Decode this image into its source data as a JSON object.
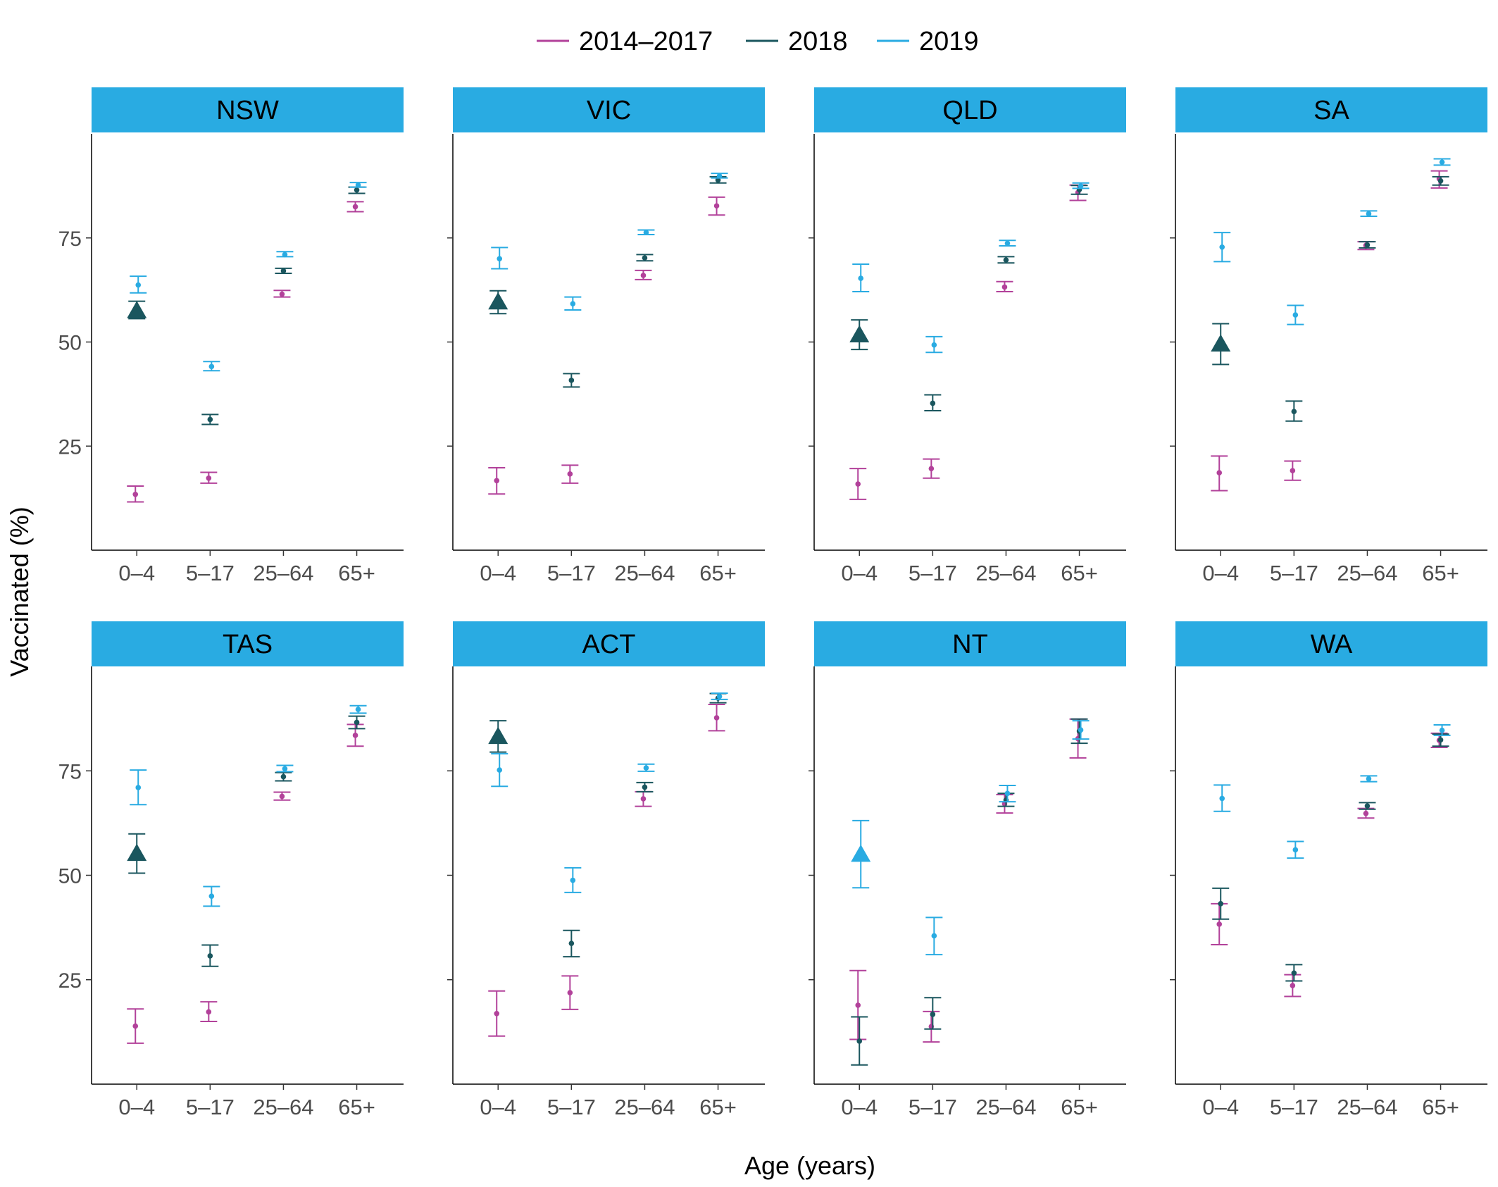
{
  "chart_data": {
    "type": "scatter",
    "xlabel": "Age (years)",
    "ylabel": "Vaccinated (%)",
    "ylim": [
      0,
      100
    ],
    "yticks": [
      25,
      50,
      75
    ],
    "categories": [
      "0–4",
      "5–17",
      "25–64",
      "65+"
    ],
    "legend": {
      "placement": "top",
      "entries": [
        {
          "name": "2014–2017",
          "color": "#b2419a"
        },
        {
          "name": "2018",
          "color": "#1a565e"
        },
        {
          "name": "2019",
          "color": "#29abe2"
        }
      ]
    },
    "strip_color": "#29abe2",
    "marker_note": "triangle marks highlighted 0–4 estimate",
    "panels": [
      {
        "name": "NSW",
        "series": [
          {
            "name": "2014–2017",
            "points": [
              {
                "y": 13.4,
                "lo": 11.6,
                "hi": 15.4
              },
              {
                "y": 17.3,
                "lo": 16.1,
                "hi": 18.7
              },
              {
                "y": 61.5,
                "lo": 60.8,
                "hi": 62.4
              },
              {
                "y": 82.5,
                "lo": 81.3,
                "hi": 83.7
              }
            ]
          },
          {
            "name": "2018",
            "points": [
              {
                "y": 57.5,
                "lo": 55.6,
                "hi": 59.8,
                "marker": "triangle"
              },
              {
                "y": 31.4,
                "lo": 30.2,
                "hi": 32.6
              },
              {
                "y": 67.1,
                "lo": 66.5,
                "hi": 67.7
              },
              {
                "y": 86.5,
                "lo": 85.7,
                "hi": 87.2
              }
            ]
          },
          {
            "name": "2019",
            "points": [
              {
                "y": 63.7,
                "lo": 61.8,
                "hi": 65.8
              },
              {
                "y": 44.1,
                "lo": 43.1,
                "hi": 45.3
              },
              {
                "y": 71.0,
                "lo": 70.5,
                "hi": 71.7
              },
              {
                "y": 87.7,
                "lo": 87.2,
                "hi": 88.3
              }
            ]
          }
        ]
      },
      {
        "name": "VIC",
        "series": [
          {
            "name": "2014–2017",
            "points": [
              {
                "y": 16.7,
                "lo": 13.5,
                "hi": 19.8
              },
              {
                "y": 18.3,
                "lo": 16.1,
                "hi": 20.4
              },
              {
                "y": 66.0,
                "lo": 65.0,
                "hi": 67.2
              },
              {
                "y": 82.7,
                "lo": 80.5,
                "hi": 84.8
              }
            ]
          },
          {
            "name": "2018",
            "points": [
              {
                "y": 59.6,
                "lo": 56.8,
                "hi": 62.3,
                "marker": "triangle"
              },
              {
                "y": 40.8,
                "lo": 39.2,
                "hi": 42.4
              },
              {
                "y": 70.2,
                "lo": 69.5,
                "hi": 71.0
              },
              {
                "y": 88.9,
                "lo": 88.2,
                "hi": 89.7
              }
            ]
          },
          {
            "name": "2019",
            "points": [
              {
                "y": 70.0,
                "lo": 67.6,
                "hi": 72.7
              },
              {
                "y": 59.2,
                "lo": 57.7,
                "hi": 60.8
              },
              {
                "y": 76.3,
                "lo": 75.8,
                "hi": 76.9
              },
              {
                "y": 89.9,
                "lo": 89.4,
                "hi": 90.5
              }
            ]
          }
        ]
      },
      {
        "name": "QLD",
        "series": [
          {
            "name": "2014–2017",
            "points": [
              {
                "y": 15.9,
                "lo": 12.2,
                "hi": 19.6
              },
              {
                "y": 19.6,
                "lo": 17.3,
                "hi": 21.9
              },
              {
                "y": 63.2,
                "lo": 62.1,
                "hi": 64.5
              },
              {
                "y": 85.9,
                "lo": 84.0,
                "hi": 87.7
              }
            ]
          },
          {
            "name": "2018",
            "points": [
              {
                "y": 51.7,
                "lo": 48.2,
                "hi": 55.3,
                "marker": "triangle"
              },
              {
                "y": 35.3,
                "lo": 33.5,
                "hi": 37.3
              },
              {
                "y": 69.7,
                "lo": 69.0,
                "hi": 70.5
              },
              {
                "y": 86.6,
                "lo": 85.5,
                "hi": 87.6
              }
            ]
          },
          {
            "name": "2019",
            "points": [
              {
                "y": 65.3,
                "lo": 62.1,
                "hi": 68.7
              },
              {
                "y": 49.3,
                "lo": 47.5,
                "hi": 51.3
              },
              {
                "y": 73.7,
                "lo": 73.1,
                "hi": 74.4
              },
              {
                "y": 87.5,
                "lo": 86.9,
                "hi": 88.2
              }
            ]
          }
        ]
      },
      {
        "name": "SA",
        "series": [
          {
            "name": "2014–2017",
            "points": [
              {
                "y": 18.6,
                "lo": 14.3,
                "hi": 22.6
              },
              {
                "y": 19.1,
                "lo": 16.8,
                "hi": 21.4
              },
              {
                "y": 73.2,
                "lo": 72.2,
                "hi": 74.1
              },
              {
                "y": 89.2,
                "lo": 87.0,
                "hi": 91.1
              }
            ]
          },
          {
            "name": "2018",
            "points": [
              {
                "y": 49.5,
                "lo": 44.6,
                "hi": 54.4,
                "marker": "triangle"
              },
              {
                "y": 33.3,
                "lo": 31.0,
                "hi": 35.8
              },
              {
                "y": 73.3,
                "lo": 72.6,
                "hi": 74.1
              },
              {
                "y": 88.7,
                "lo": 87.7,
                "hi": 89.7
              }
            ]
          },
          {
            "name": "2019",
            "points": [
              {
                "y": 72.8,
                "lo": 69.3,
                "hi": 76.3
              },
              {
                "y": 56.5,
                "lo": 54.2,
                "hi": 58.8
              },
              {
                "y": 80.8,
                "lo": 80.2,
                "hi": 81.5
              },
              {
                "y": 93.2,
                "lo": 92.5,
                "hi": 94.0
              }
            ]
          }
        ]
      },
      {
        "name": "TAS",
        "series": [
          {
            "name": "2014–2017",
            "points": [
              {
                "y": 13.9,
                "lo": 9.8,
                "hi": 18.0
              },
              {
                "y": 17.3,
                "lo": 15.0,
                "hi": 19.7
              },
              {
                "y": 68.9,
                "lo": 68.0,
                "hi": 69.9
              },
              {
                "y": 83.5,
                "lo": 80.9,
                "hi": 86.1
              }
            ]
          },
          {
            "name": "2018",
            "points": [
              {
                "y": 55.2,
                "lo": 50.5,
                "hi": 59.9,
                "marker": "triangle"
              },
              {
                "y": 30.7,
                "lo": 28.2,
                "hi": 33.3
              },
              {
                "y": 73.6,
                "lo": 72.6,
                "hi": 74.6
              },
              {
                "y": 86.6,
                "lo": 85.1,
                "hi": 88.1
              }
            ]
          },
          {
            "name": "2019",
            "points": [
              {
                "y": 71.0,
                "lo": 66.9,
                "hi": 75.2
              },
              {
                "y": 45.0,
                "lo": 42.6,
                "hi": 47.3
              },
              {
                "y": 75.5,
                "lo": 74.8,
                "hi": 76.3
              },
              {
                "y": 89.7,
                "lo": 88.8,
                "hi": 90.6
              }
            ]
          }
        ]
      },
      {
        "name": "ACT",
        "series": [
          {
            "name": "2014–2017",
            "points": [
              {
                "y": 16.9,
                "lo": 11.5,
                "hi": 22.3
              },
              {
                "y": 21.9,
                "lo": 17.9,
                "hi": 25.9
              },
              {
                "y": 68.3,
                "lo": 66.5,
                "hi": 70.0
              },
              {
                "y": 87.7,
                "lo": 84.6,
                "hi": 90.9
              }
            ]
          },
          {
            "name": "2018",
            "points": [
              {
                "y": 83.2,
                "lo": 79.5,
                "hi": 87.0,
                "marker": "triangle"
              },
              {
                "y": 33.7,
                "lo": 30.5,
                "hi": 36.8
              },
              {
                "y": 71.1,
                "lo": 70.0,
                "hi": 72.2
              },
              {
                "y": 92.4,
                "lo": 91.3,
                "hi": 93.5
              }
            ]
          },
          {
            "name": "2019",
            "points": [
              {
                "y": 75.2,
                "lo": 71.3,
                "hi": 79.1
              },
              {
                "y": 48.8,
                "lo": 45.9,
                "hi": 51.8
              },
              {
                "y": 75.7,
                "lo": 74.9,
                "hi": 76.6
              },
              {
                "y": 92.8,
                "lo": 92.1,
                "hi": 93.6
              }
            ]
          }
        ]
      },
      {
        "name": "NT",
        "series": [
          {
            "name": "2014–2017",
            "points": [
              {
                "y": 18.9,
                "lo": 10.7,
                "hi": 27.2
              },
              {
                "y": 13.8,
                "lo": 10.1,
                "hi": 17.4
              },
              {
                "y": 67.1,
                "lo": 64.9,
                "hi": 69.3
              },
              {
                "y": 82.7,
                "lo": 78.1,
                "hi": 87.4
              }
            ]
          },
          {
            "name": "2018",
            "points": [
              {
                "y": 10.3,
                "lo": 4.6,
                "hi": 16.1
              },
              {
                "y": 16.7,
                "lo": 13.2,
                "hi": 20.7
              },
              {
                "y": 68.0,
                "lo": 66.5,
                "hi": 69.6
              },
              {
                "y": 84.5,
                "lo": 81.6,
                "hi": 87.4
              }
            ]
          },
          {
            "name": "2019",
            "points": [
              {
                "y": 55.0,
                "lo": 47.0,
                "hi": 63.1,
                "marker": "triangle"
              },
              {
                "y": 35.5,
                "lo": 31.0,
                "hi": 39.9
              },
              {
                "y": 69.6,
                "lo": 67.6,
                "hi": 71.5
              },
              {
                "y": 84.8,
                "lo": 82.6,
                "hi": 87.0
              }
            ]
          }
        ]
      },
      {
        "name": "WA",
        "series": [
          {
            "name": "2014–2017",
            "points": [
              {
                "y": 38.3,
                "lo": 33.4,
                "hi": 43.2
              },
              {
                "y": 23.6,
                "lo": 21.0,
                "hi": 26.2
              },
              {
                "y": 64.8,
                "lo": 63.7,
                "hi": 66.0
              },
              {
                "y": 82.3,
                "lo": 80.6,
                "hi": 84.0
              }
            ]
          },
          {
            "name": "2018",
            "points": [
              {
                "y": 43.2,
                "lo": 39.5,
                "hi": 46.9
              },
              {
                "y": 26.6,
                "lo": 24.7,
                "hi": 28.6
              },
              {
                "y": 66.6,
                "lo": 65.8,
                "hi": 67.4
              },
              {
                "y": 82.4,
                "lo": 80.9,
                "hi": 83.8
              }
            ]
          },
          {
            "name": "2019",
            "points": [
              {
                "y": 68.4,
                "lo": 65.3,
                "hi": 71.6
              },
              {
                "y": 56.1,
                "lo": 54.1,
                "hi": 58.1
              },
              {
                "y": 73.1,
                "lo": 72.4,
                "hi": 73.8
              },
              {
                "y": 84.7,
                "lo": 83.5,
                "hi": 86.0
              }
            ]
          }
        ]
      }
    ]
  }
}
